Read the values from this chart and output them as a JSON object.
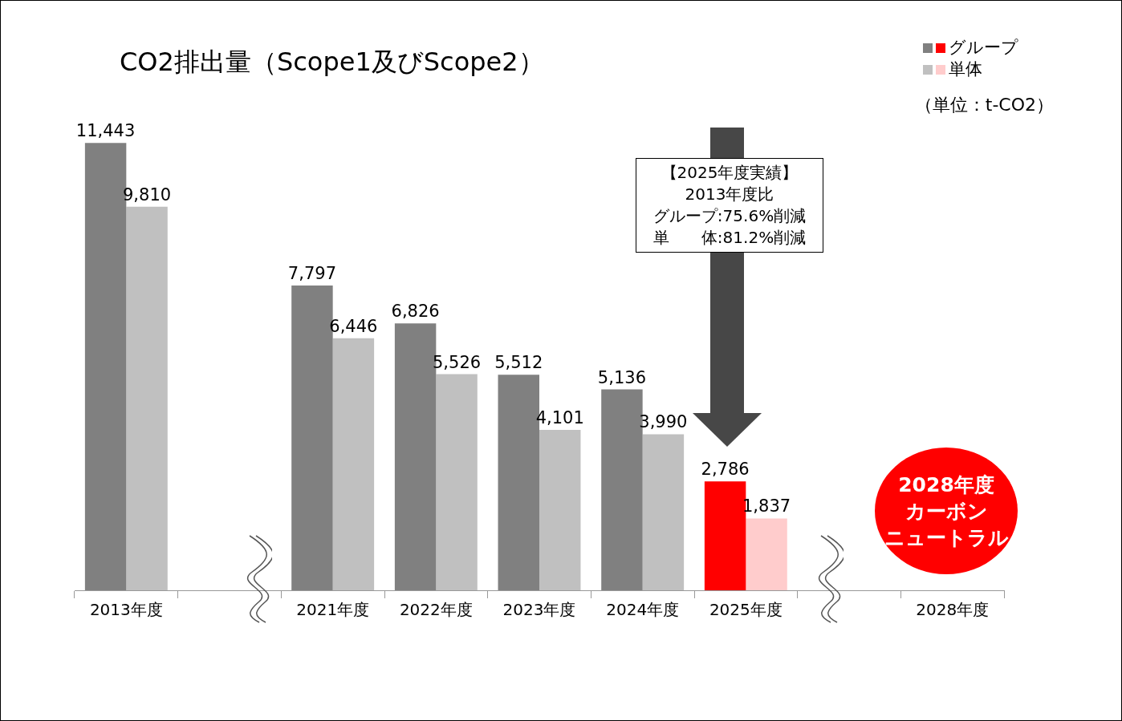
{
  "chart_data": {
    "type": "bar",
    "title": "CO2排出量（Scope1及びScope2）",
    "categories": [
      "2013年度",
      null,
      "2021年度",
      "2022年度",
      "2023年度",
      "2024年度",
      "2025年度",
      null,
      "2028年度"
    ],
    "series": [
      {
        "name": "グループ",
        "color": "#808080",
        "colors": [
          "#808080",
          null,
          "#808080",
          "#808080",
          "#808080",
          "#808080",
          "#ff0000",
          null,
          null
        ],
        "values": [
          11443,
          null,
          7797,
          6826,
          5512,
          5136,
          2786,
          null,
          null
        ],
        "value_labels": [
          "11,443",
          null,
          "7,797",
          "6,826",
          "5,512",
          "5,136",
          "2,786",
          null,
          null
        ]
      },
      {
        "name": "単体",
        "color": "#c0c0c0",
        "colors": [
          "#c0c0c0",
          null,
          "#c0c0c0",
          "#c0c0c0",
          "#c0c0c0",
          "#c0c0c0",
          "#ffcccc",
          null,
          null
        ],
        "values": [
          9810,
          null,
          6446,
          5526,
          4101,
          3990,
          1837,
          null,
          null
        ],
        "value_labels": [
          "9,810",
          null,
          "6,446",
          "5,526",
          "4,101",
          "3,990",
          "1,837",
          null,
          null
        ]
      }
    ],
    "legend": "top right",
    "tick_labels": "x",
    "annotations": [
      "（単位：t-CO2）",
      "【2025年度実績】",
      "2013年度比",
      "グループ:75.6%削減",
      "単　　体:81.2%削減",
      "2028年度",
      "カーボン",
      "ニュートラル"
    ]
  }
}
